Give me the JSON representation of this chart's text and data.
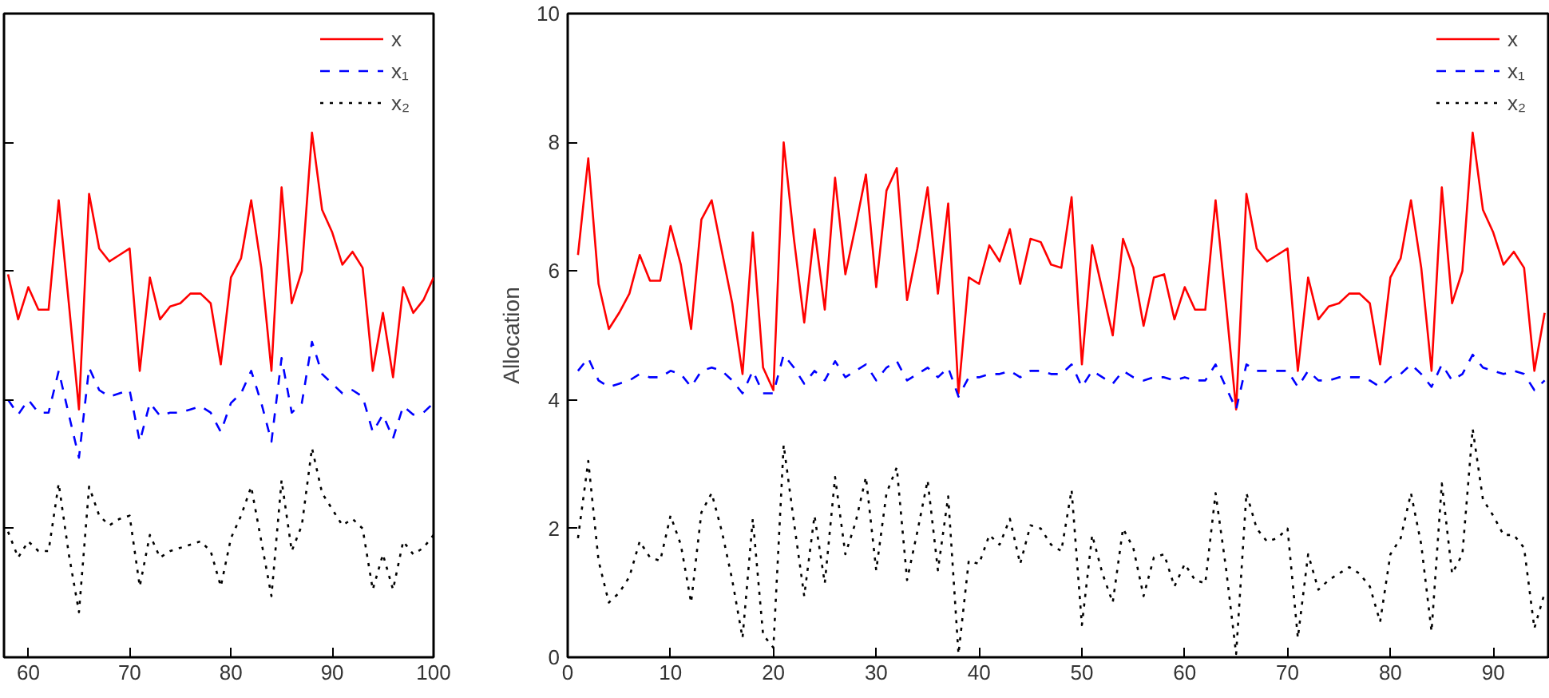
{
  "chart_data": [
    {
      "type": "line",
      "x": [
        58,
        59,
        60,
        61,
        62,
        63,
        64,
        65,
        66,
        67,
        68,
        69,
        70,
        71,
        72,
        73,
        74,
        75,
        76,
        77,
        78,
        79,
        80,
        81,
        82,
        83,
        84,
        85,
        86,
        87,
        88,
        89,
        90,
        91,
        92,
        93,
        94,
        95,
        96,
        97,
        98,
        99,
        100
      ],
      "xlim": [
        57.6,
        100
      ],
      "xticks": [
        60,
        70,
        80,
        90,
        100
      ],
      "ylim": [
        0,
        10
      ],
      "yticks": [
        0,
        2,
        4,
        6,
        8,
        10
      ],
      "tick_labels": "x",
      "legend": "top right",
      "grid": false,
      "series": [
        {
          "name": "x",
          "color": "#ff0000",
          "line_style": "solid",
          "values": [
            5.95,
            5.25,
            5.75,
            5.4,
            5.4,
            7.1,
            5.5,
            3.85,
            7.2,
            6.35,
            6.15,
            6.25,
            6.35,
            4.45,
            5.9,
            5.25,
            5.45,
            5.5,
            5.65,
            5.65,
            5.5,
            4.55,
            5.9,
            6.2,
            7.1,
            6.05,
            4.45,
            7.3,
            5.5,
            6.0,
            8.15,
            6.95,
            6.6,
            6.1,
            6.3,
            6.05,
            4.45,
            5.35,
            4.35,
            5.75,
            5.35,
            5.55,
            5.9
          ]
        },
        {
          "name": "x₁",
          "color": "#0000ff",
          "line_style": "dashed",
          "values": [
            4.0,
            3.77,
            4.0,
            3.8,
            3.8,
            4.45,
            3.77,
            3.1,
            4.5,
            4.15,
            4.05,
            4.1,
            4.15,
            3.35,
            3.95,
            3.75,
            3.8,
            3.8,
            3.85,
            3.9,
            3.8,
            3.5,
            3.95,
            4.1,
            4.45,
            3.95,
            3.35,
            4.65,
            3.8,
            3.95,
            4.9,
            4.4,
            4.25,
            4.1,
            4.15,
            4.05,
            3.5,
            3.77,
            3.4,
            3.9,
            3.77,
            3.8,
            3.95
          ]
        },
        {
          "name": "x₂",
          "color": "#000000",
          "line_style": "dotted",
          "values": [
            1.95,
            1.55,
            1.8,
            1.65,
            1.65,
            2.7,
            1.6,
            0.7,
            2.65,
            2.2,
            2.05,
            2.15,
            2.2,
            1.1,
            1.9,
            1.55,
            1.65,
            1.7,
            1.75,
            1.8,
            1.65,
            1.1,
            1.85,
            2.2,
            2.65,
            1.8,
            0.95,
            2.75,
            1.65,
            2.05,
            3.25,
            2.55,
            2.3,
            2.05,
            2.15,
            2.0,
            1.05,
            1.6,
            1.05,
            1.8,
            1.6,
            1.7,
            1.9
          ]
        }
      ]
    },
    {
      "type": "line",
      "ylabel": "Allocation",
      "x": [
        1,
        2,
        3,
        4,
        5,
        6,
        7,
        8,
        9,
        10,
        11,
        12,
        13,
        14,
        15,
        16,
        17,
        18,
        19,
        20,
        21,
        22,
        23,
        24,
        25,
        26,
        27,
        28,
        29,
        30,
        31,
        32,
        33,
        34,
        35,
        36,
        37,
        38,
        39,
        40,
        41,
        42,
        43,
        44,
        45,
        46,
        47,
        48,
        49,
        50,
        51,
        52,
        53,
        54,
        55,
        56,
        57,
        58,
        59,
        60,
        61,
        62,
        63,
        64,
        65,
        66,
        67,
        68,
        69,
        70,
        71,
        72,
        73,
        74,
        75,
        76,
        77,
        78,
        79,
        80,
        81,
        82,
        83,
        84,
        85,
        86,
        87,
        88,
        89,
        90,
        91,
        92,
        93,
        94,
        95
      ],
      "xlim": [
        0,
        95.5
      ],
      "xticks": [
        0,
        10,
        20,
        30,
        40,
        50,
        60,
        70,
        80,
        90
      ],
      "ylim": [
        0,
        10
      ],
      "yticks": [
        0,
        2,
        4,
        6,
        8,
        10
      ],
      "legend": "top right",
      "grid": false,
      "series": [
        {
          "name": "x",
          "color": "#ff0000",
          "line_style": "solid",
          "values": [
            6.25,
            7.75,
            5.8,
            5.1,
            5.35,
            5.65,
            6.25,
            5.85,
            5.85,
            6.7,
            6.1,
            5.1,
            6.8,
            7.1,
            6.3,
            5.5,
            4.4,
            6.6,
            4.5,
            4.15,
            8.0,
            6.5,
            5.2,
            6.65,
            5.4,
            7.45,
            5.95,
            6.7,
            7.5,
            5.75,
            7.25,
            7.6,
            5.55,
            6.35,
            7.3,
            5.65,
            7.05,
            4.1,
            5.9,
            5.8,
            6.4,
            6.15,
            6.65,
            5.8,
            6.5,
            6.45,
            6.1,
            6.05,
            7.15,
            4.55,
            6.4,
            5.7,
            5.0,
            6.5,
            6.05,
            5.15,
            5.9,
            5.95,
            5.25,
            5.75,
            5.4,
            5.4,
            7.1,
            5.5,
            3.85,
            7.2,
            6.35,
            6.15,
            6.25,
            6.35,
            4.45,
            5.9,
            5.25,
            5.45,
            5.5,
            5.65,
            5.65,
            5.5,
            4.55,
            5.9,
            6.2,
            7.1,
            6.05,
            4.45,
            7.3,
            5.5,
            6.0,
            8.15,
            6.95,
            6.6,
            6.1,
            6.3,
            6.05,
            4.45,
            5.35
          ]
        },
        {
          "name": "x₁",
          "color": "#0000ff",
          "line_style": "dashed",
          "values": [
            4.45,
            4.65,
            4.3,
            4.2,
            4.25,
            4.3,
            4.4,
            4.35,
            4.35,
            4.45,
            4.4,
            4.2,
            4.45,
            4.5,
            4.45,
            4.3,
            4.1,
            4.45,
            4.1,
            4.1,
            4.7,
            4.5,
            4.25,
            4.45,
            4.3,
            4.6,
            4.35,
            4.45,
            4.55,
            4.3,
            4.5,
            4.6,
            4.3,
            4.4,
            4.5,
            4.35,
            4.5,
            4.05,
            4.35,
            4.35,
            4.4,
            4.4,
            4.45,
            4.35,
            4.45,
            4.45,
            4.4,
            4.4,
            4.55,
            4.2,
            4.45,
            4.35,
            4.25,
            4.45,
            4.35,
            4.3,
            4.35,
            4.35,
            4.3,
            4.35,
            4.3,
            4.3,
            4.55,
            4.2,
            3.85,
            4.55,
            4.45,
            4.45,
            4.45,
            4.45,
            4.2,
            4.45,
            4.3,
            4.3,
            4.35,
            4.35,
            4.35,
            4.3,
            4.2,
            4.35,
            4.4,
            4.55,
            4.4,
            4.2,
            4.55,
            4.3,
            4.4,
            4.7,
            4.5,
            4.45,
            4.4,
            4.45,
            4.4,
            4.15,
            4.3
          ]
        },
        {
          "name": "x₂",
          "color": "#000000",
          "line_style": "dotted",
          "values": [
            1.85,
            3.05,
            1.5,
            0.85,
            1.0,
            1.25,
            1.8,
            1.55,
            1.5,
            2.2,
            1.75,
            0.85,
            2.25,
            2.55,
            1.95,
            1.2,
            0.3,
            2.15,
            0.35,
            0.15,
            3.3,
            2.1,
            0.95,
            2.2,
            1.15,
            2.8,
            1.6,
            2.1,
            2.8,
            1.35,
            2.55,
            2.95,
            1.2,
            1.95,
            2.75,
            1.35,
            2.5,
            0.05,
            1.5,
            1.45,
            1.9,
            1.75,
            2.15,
            1.45,
            2.05,
            2.0,
            1.75,
            1.65,
            2.6,
            0.5,
            1.9,
            1.3,
            0.85,
            2.0,
            1.7,
            0.95,
            1.55,
            1.6,
            1.1,
            1.45,
            1.2,
            1.15,
            2.55,
            1.4,
            0.05,
            2.55,
            2.0,
            1.8,
            1.85,
            2.0,
            0.3,
            1.6,
            1.05,
            1.2,
            1.3,
            1.4,
            1.3,
            1.1,
            0.55,
            1.6,
            1.85,
            2.55,
            1.75,
            0.4,
            2.7,
            1.3,
            1.6,
            3.55,
            2.45,
            2.2,
            1.9,
            1.9,
            1.7,
            0.45,
            1.0
          ]
        }
      ]
    }
  ]
}
